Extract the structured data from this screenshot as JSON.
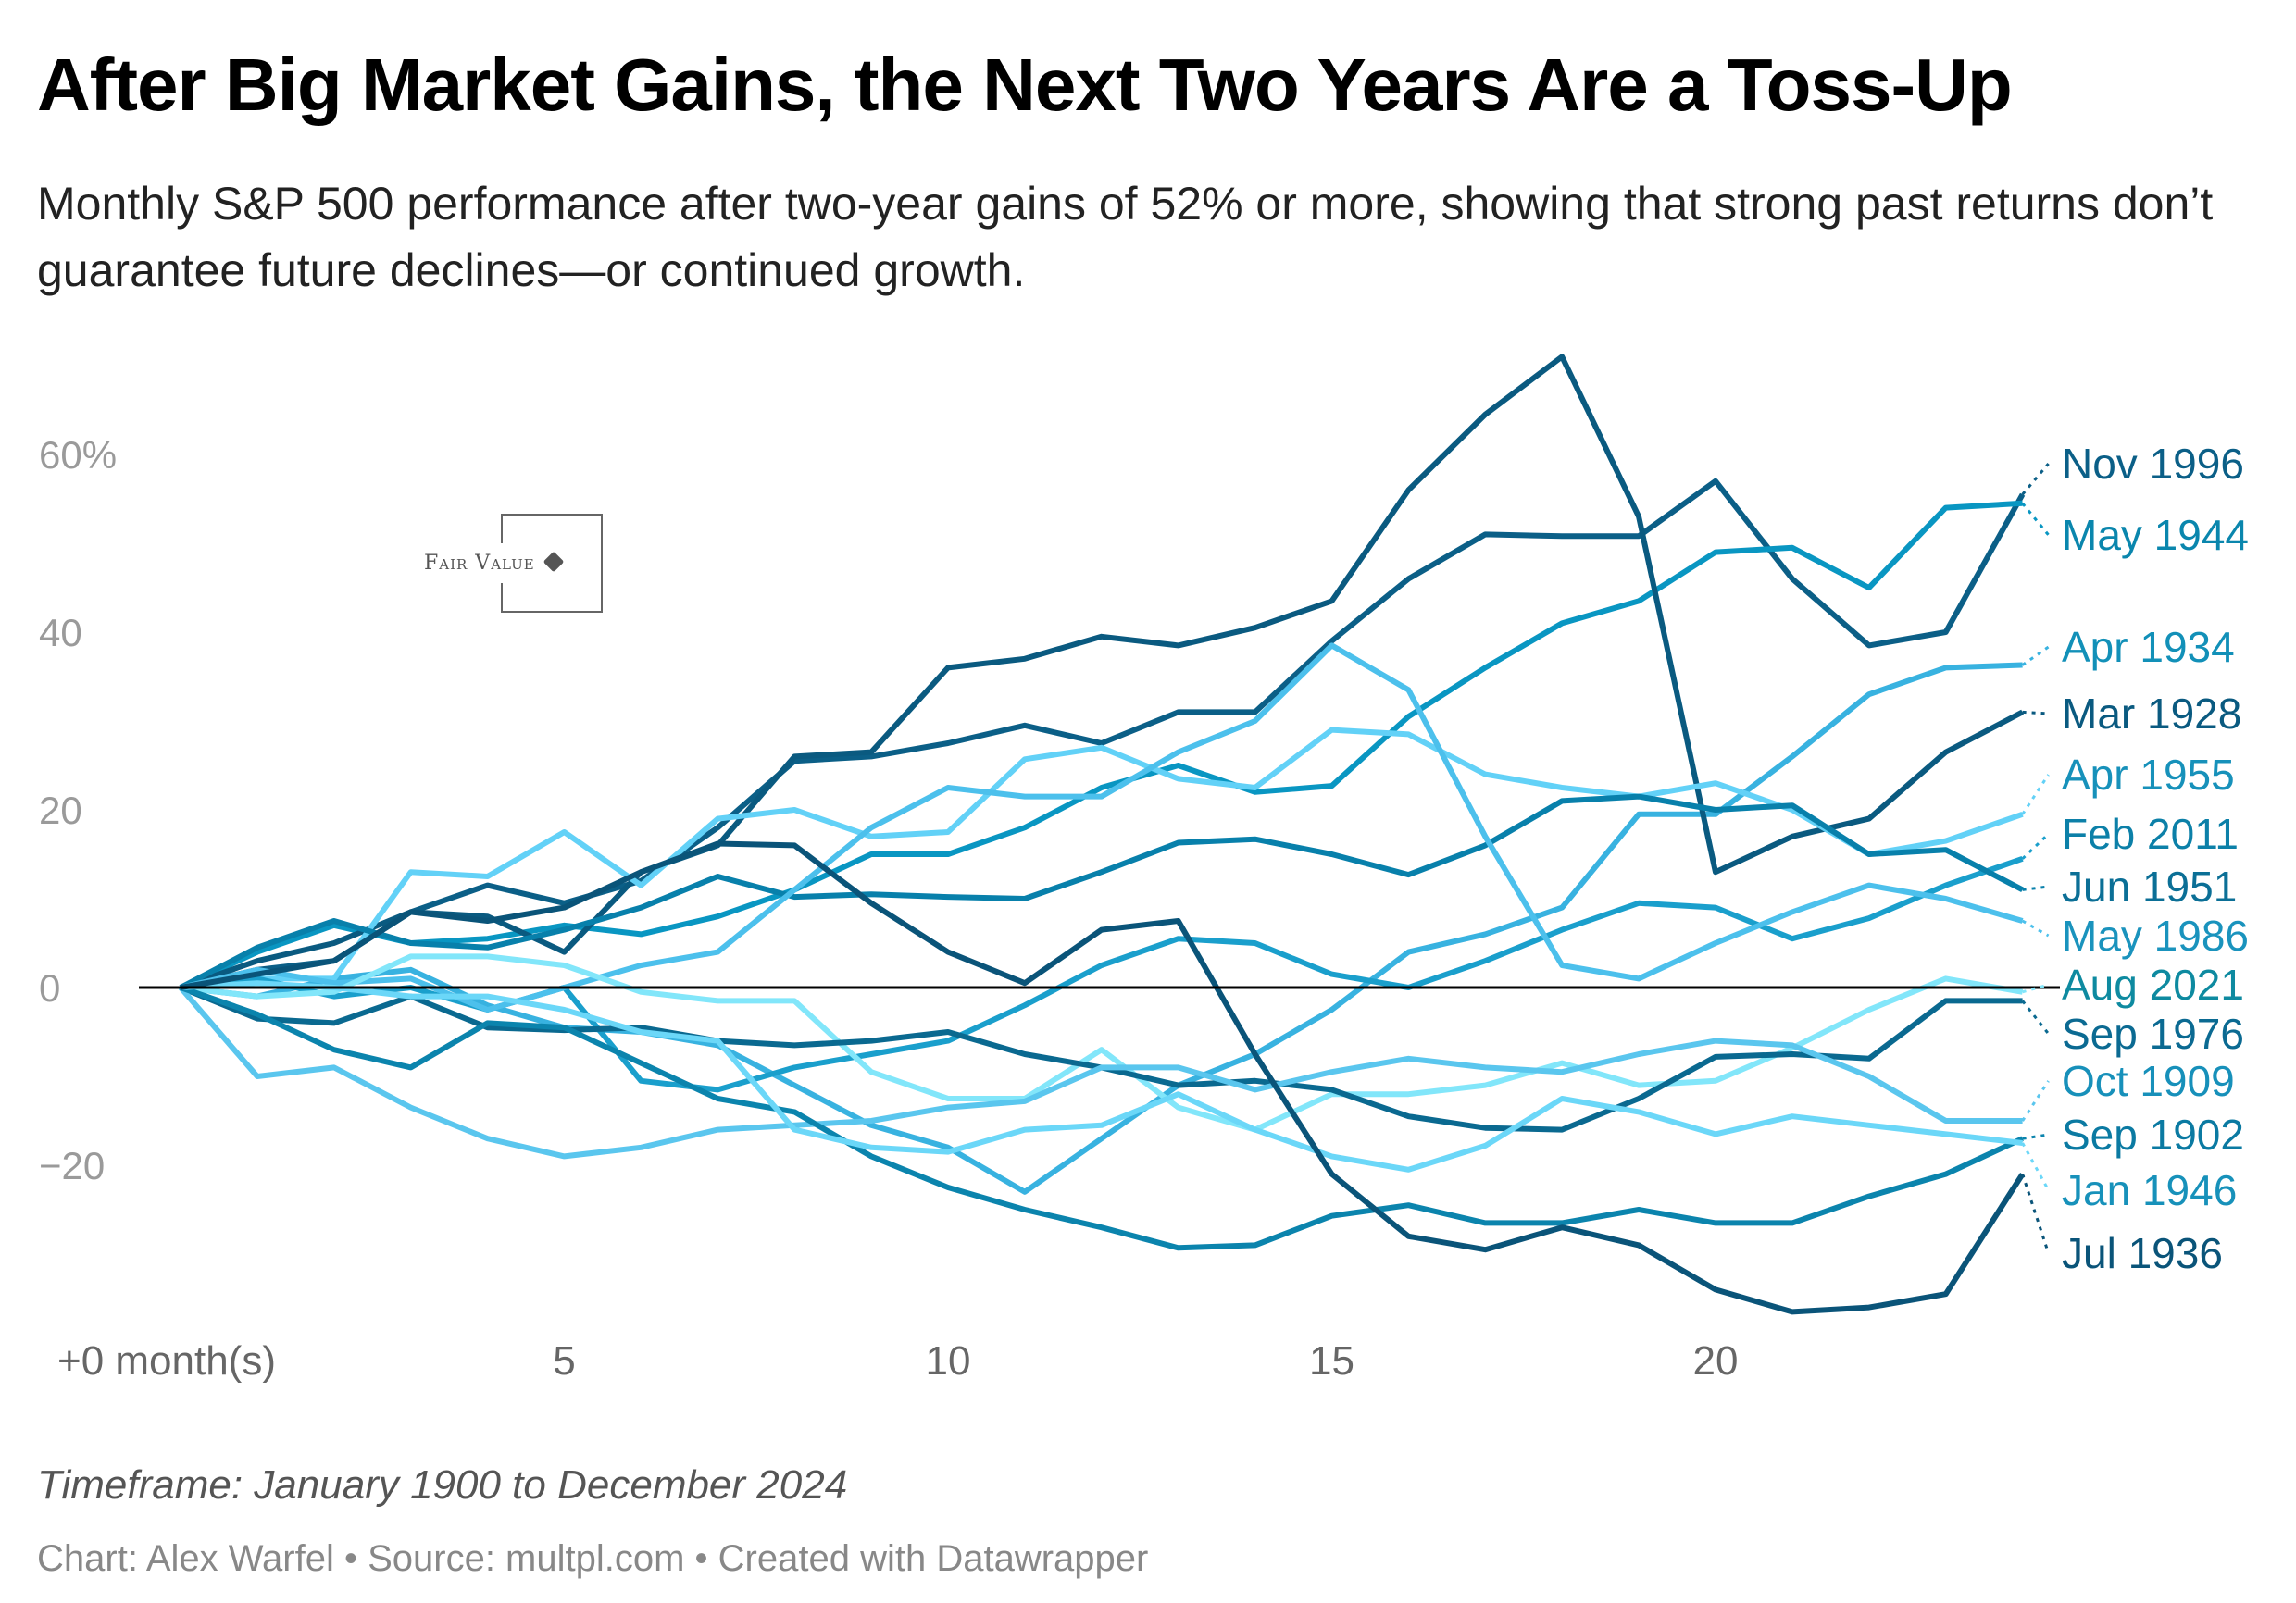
{
  "header": {
    "title": "After Big Market Gains, the Next Two Years Are a Toss-Up",
    "subtitle": "Monthly S&P 500 performance after two-year gains of 52% or more, showing that strong past returns don’t guarantee future declines—or continued growth."
  },
  "logo": {
    "text": "Fair Value"
  },
  "footer": {
    "note": "Timeframe: January 1900 to December 2024",
    "credit_chart": "Chart: Alex Warfel",
    "separator": " • ",
    "credit_source": "Source: multpl.com",
    "credit_tool": "Created with Datawrapper"
  },
  "chart_data": {
    "type": "line",
    "title": "After Big Market Gains, the Next Two Years Are a Toss-Up",
    "xlabel": "month(s)",
    "ylabel": "",
    "x": [
      0,
      1,
      2,
      3,
      4,
      5,
      6,
      7,
      8,
      9,
      10,
      11,
      12,
      13,
      14,
      15,
      16,
      17,
      18,
      19,
      20,
      21,
      22,
      23,
      24
    ],
    "xlim": [
      0,
      24
    ],
    "ylim": [
      -40,
      70
    ],
    "x_ticks": [
      {
        "value": 0,
        "label": "+0 month(s)"
      },
      {
        "value": 5,
        "label": "5"
      },
      {
        "value": 10,
        "label": "10"
      },
      {
        "value": 15,
        "label": "15"
      },
      {
        "value": 20,
        "label": "20"
      }
    ],
    "y_ticks": [
      {
        "value": 60,
        "label": "60%"
      },
      {
        "value": 40,
        "label": "40"
      },
      {
        "value": 20,
        "label": "20"
      },
      {
        "value": 0,
        "label": "0"
      },
      {
        "value": -20,
        "label": "−20"
      }
    ],
    "grid": false,
    "legend": "direct-labels-right",
    "series": [
      {
        "name": "Nov 1996",
        "color": "#0b5f87",
        "label_color": "#0b5f87",
        "values": [
          0,
          2,
          3,
          8.5,
          11.5,
          9.5,
          12,
          18,
          25.5,
          26,
          27.5,
          29.5,
          27.5,
          31,
          31,
          39,
          46,
          51,
          50.8,
          50.8,
          57,
          46,
          38.5,
          40,
          55.5
        ]
      },
      {
        "name": "May 1944",
        "color": "#0996c2",
        "label_color": "#0a86ad",
        "values": [
          0,
          4,
          7,
          5,
          5.5,
          7,
          6,
          8,
          11,
          15,
          15,
          18,
          22.5,
          25,
          22,
          22.7,
          30.5,
          36,
          41,
          43.5,
          49,
          49.5,
          45,
          54,
          54.5
        ]
      },
      {
        "name": "Apr 1934",
        "color": "#38b2e0",
        "label_color": "#1290b8",
        "values": [
          0,
          -1,
          1,
          2,
          -2,
          -4.5,
          -5,
          -6.5,
          -11,
          -15.5,
          -18,
          -23,
          -17,
          -11,
          -7.5,
          -2.5,
          4,
          6,
          9,
          19.5,
          19.5,
          26,
          33,
          36,
          36.3
        ]
      },
      {
        "name": "Mar 1928",
        "color": "#0a5a80",
        "label_color": "#0a5a80",
        "values": [
          0,
          3,
          5,
          8.5,
          8,
          4,
          13,
          16,
          26,
          26.5,
          36,
          37,
          39.5,
          38.5,
          40.5,
          43.5,
          56,
          64.5,
          71,
          53,
          13,
          17,
          19,
          26.5,
          31
        ]
      },
      {
        "name": "Apr 1955",
        "color": "#62d1f7",
        "label_color": "#1791ba",
        "values": [
          0,
          1,
          1,
          13,
          12.5,
          17.5,
          11.5,
          19,
          20,
          17,
          17.5,
          25.7,
          27,
          23.5,
          22.5,
          29,
          28.5,
          24,
          22.5,
          21.5,
          23,
          20,
          15,
          16.5,
          19.5
        ]
      },
      {
        "name": "Feb 2011",
        "color": "#1a9fcc",
        "label_color": "#0c80a8",
        "values": [
          0,
          1,
          -1,
          0,
          -2.5,
          0,
          -10.5,
          -11.5,
          -9,
          -7.5,
          -6,
          -2,
          2.5,
          5.5,
          5,
          1.5,
          0,
          3,
          6.5,
          9.5,
          9,
          5.5,
          7.8,
          11.5,
          14.5
        ]
      },
      {
        "name": "Jun 1951",
        "color": "#0880ab",
        "label_color": "#0b6f96",
        "values": [
          0,
          4.5,
          7.5,
          5,
          4.5,
          6.5,
          9,
          12.5,
          10.2,
          10.5,
          10.2,
          10,
          13,
          16.3,
          16.7,
          15,
          12.7,
          16,
          21,
          21.5,
          20,
          20.5,
          15,
          15.5,
          11
        ]
      },
      {
        "name": "May 1986",
        "color": "#4cc0ec",
        "label_color": "#1a93bd",
        "values": [
          0,
          2,
          0.5,
          1,
          -2.5,
          0,
          2.5,
          4,
          11,
          18,
          22.5,
          21.5,
          21.5,
          26.5,
          30,
          38.5,
          33.5,
          17,
          2.5,
          1,
          5,
          8.5,
          11.5,
          10,
          7.5
        ]
      },
      {
        "name": "Aug 2021",
        "color": "#82e6fa",
        "label_color": "#0e8aa0",
        "values": [
          0,
          -1,
          -0.5,
          3.5,
          3.5,
          2.5,
          -0.5,
          -1.5,
          -1.5,
          -9.5,
          -12.5,
          -12.5,
          -7,
          -13.5,
          -16,
          -12,
          -12,
          -11,
          -8.5,
          -11,
          -10.5,
          -6.8,
          -2.5,
          1,
          -0.5
        ]
      },
      {
        "name": "Sep 1976",
        "color": "#0a6990",
        "label_color": "#0b6a92",
        "values": [
          0,
          -3.5,
          -4,
          -1,
          -4.5,
          -4.8,
          -4.5,
          -6,
          -6.5,
          -6,
          -5,
          -7.5,
          -9,
          -11,
          -10.5,
          -11.5,
          -14.5,
          -15.8,
          -16,
          -12.5,
          -7.8,
          -7.5,
          -8,
          -1.5,
          -1.5
        ]
      },
      {
        "name": "Oct 1909",
        "color": "#5ac6ee",
        "label_color": "#1790ba",
        "values": [
          0,
          -10,
          -9,
          -13.5,
          -17,
          -19,
          -18,
          -16,
          -15.5,
          -15,
          -13.5,
          -12.8,
          -9,
          -9,
          -11.5,
          -9.5,
          -8,
          -9,
          -9.5,
          -7.5,
          -6,
          -6.5,
          -10,
          -15,
          -15
        ]
      },
      {
        "name": "Sep 1902",
        "color": "#0b84ad",
        "label_color": "#0b7aa2",
        "values": [
          0,
          -3,
          -7,
          -9,
          -4,
          -4.5,
          -8.5,
          -12.5,
          -14,
          -19,
          -22.5,
          -25,
          -27,
          -29.3,
          -29,
          -25.7,
          -24.5,
          -26.5,
          -26.5,
          -25,
          -26.5,
          -26.5,
          -23.5,
          -21,
          -17
        ]
      },
      {
        "name": "Jan 1946",
        "color": "#6bd7f8",
        "label_color": "#1791ba",
        "values": [
          0,
          0.5,
          0,
          -1,
          -1,
          -2.5,
          -5,
          -6,
          -16,
          -18,
          -18.5,
          -16,
          -15.5,
          -12,
          -16,
          -19,
          -20.5,
          -17.8,
          -12.5,
          -14,
          -16.5,
          -14.5,
          -15.5,
          -16.5,
          -17.5
        ]
      },
      {
        "name": "Jul 1936",
        "color": "#0a5479",
        "label_color": "#0a5479",
        "values": [
          0,
          1.5,
          3,
          8.5,
          7.5,
          9,
          13,
          16.2,
          16,
          9.5,
          4,
          0.5,
          6.5,
          7.5,
          -7.5,
          -21,
          -28,
          -29.5,
          -27,
          -29,
          -34,
          -36.5,
          -36,
          -34.5,
          -21
        ]
      }
    ]
  }
}
